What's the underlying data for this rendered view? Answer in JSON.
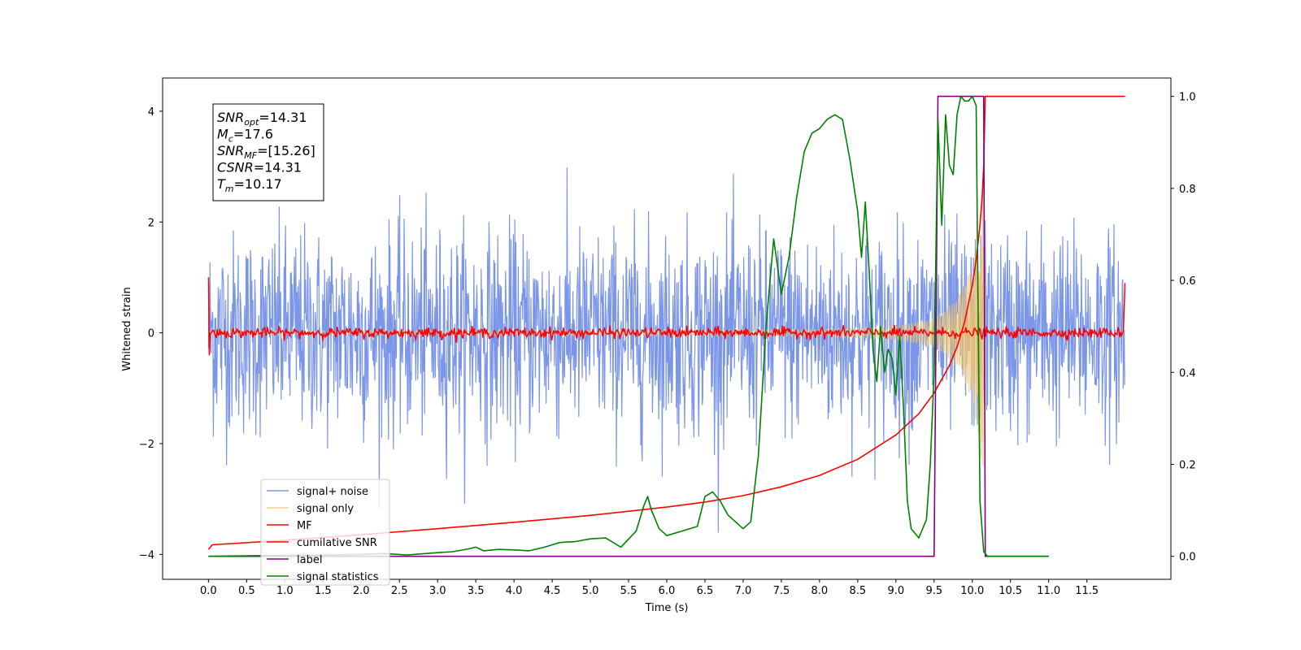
{
  "chart_data": {
    "type": "line",
    "title": "",
    "xlabel": "Time (s)",
    "ylabel": "Whitened strain",
    "xlim": [
      -0.6,
      12.6
    ],
    "ylim": [
      -4.45,
      4.6
    ],
    "y2lim": [
      -0.05,
      1.04
    ],
    "x_ticks": [
      0.0,
      0.5,
      1.0,
      1.5,
      2.0,
      2.5,
      3.0,
      3.5,
      4.0,
      4.5,
      5.0,
      5.5,
      6.0,
      6.5,
      7.0,
      7.5,
      8.0,
      8.5,
      9.0,
      9.5,
      10.0,
      10.5,
      11.0,
      11.5
    ],
    "x_tick_labels": [
      "0.0",
      "0.5",
      "1.0",
      "1.5",
      "2.0",
      "2.5",
      "3.0",
      "3.5",
      "4.0",
      "4.5",
      "5.0",
      "5.5",
      "6.0",
      "6.5",
      "7.0",
      "7.5",
      "8.0",
      "8.5",
      "9.0",
      "9.5",
      "10.0",
      "10.5",
      "11.0",
      "11.5"
    ],
    "y_ticks": [
      -4,
      -2,
      0,
      2,
      4
    ],
    "y_tick_labels": [
      "−4",
      "−2",
      "0",
      "2",
      "4"
    ],
    "y2_ticks": [
      0.0,
      0.2,
      0.4,
      0.6,
      0.8,
      1.0
    ],
    "y2_tick_labels": [
      "0.0",
      "0.2",
      "0.4",
      "0.6",
      "0.8",
      "1.0"
    ],
    "grid": false,
    "legend_position": "lower-left",
    "info_box": {
      "lines": [
        {
          "sym": "SNR",
          "sub": "opt",
          "val": "=14.31"
        },
        {
          "sym": "M",
          "sub": "c",
          "val": "=17.6"
        },
        {
          "sym": "SNR",
          "sub": "MF",
          "val": "=[15.26]"
        },
        {
          "sym": "CSNR",
          "sub": "",
          "val": "=14.31"
        },
        {
          "sym": "T",
          "sub": "m",
          "val": "=10.17"
        }
      ]
    },
    "series": [
      {
        "name": "signal+ noise",
        "axis": "left",
        "color": "#7b96e8",
        "style": "noise",
        "x_range": [
          0.0,
          12.0
        ],
        "amplitude_typical": 2.0,
        "peak_max": 3.3,
        "peak_min": -3.6
      },
      {
        "name": "signal only",
        "axis": "left",
        "color": "#f2c46a",
        "style": "chirp",
        "x_range": [
          0.0,
          10.17
        ],
        "envelope": [
          [
            0.0,
            0.03
          ],
          [
            8.0,
            0.06
          ],
          [
            9.0,
            0.12
          ],
          [
            9.5,
            0.25
          ],
          [
            9.8,
            0.6
          ],
          [
            10.0,
            1.2
          ],
          [
            10.1,
            2.0
          ],
          [
            10.15,
            3.0
          ],
          [
            10.17,
            3.2
          ]
        ]
      },
      {
        "name": "MF",
        "axis": "left",
        "color": "#ff0000",
        "style": "mf",
        "x_range": [
          0.0,
          12.0
        ],
        "baseline": 0.0,
        "noise_amplitude": 0.1,
        "edge_values": [
          [
            0.0,
            1.0
          ],
          [
            0.02,
            -0.4
          ],
          [
            12.0,
            0.9
          ]
        ]
      },
      {
        "name": "cumilative SNR",
        "axis": "right",
        "color": "#ff0000",
        "x": [
          0.0,
          0.05,
          1.0,
          2.0,
          3.0,
          4.0,
          5.0,
          6.0,
          6.5,
          7.0,
          7.5,
          8.0,
          8.5,
          9.0,
          9.3,
          9.5,
          9.7,
          9.8,
          9.9,
          10.0,
          10.05,
          10.1,
          10.13,
          10.15,
          10.17,
          10.18,
          12.0
        ],
        "y": [
          0.015,
          0.025,
          0.035,
          0.047,
          0.06,
          0.074,
          0.089,
          0.107,
          0.118,
          0.132,
          0.151,
          0.176,
          0.211,
          0.264,
          0.31,
          0.355,
          0.415,
          0.455,
          0.51,
          0.59,
          0.645,
          0.72,
          0.785,
          0.85,
          1.0,
          1.0,
          1.0
        ]
      },
      {
        "name": "label",
        "axis": "right",
        "color": "#800080",
        "x": [
          0.0,
          9.5,
          9.55,
          10.15,
          10.17,
          11.0
        ],
        "y": [
          0.0,
          0.0,
          1.0,
          1.0,
          0.0,
          0.0
        ]
      },
      {
        "name": "signal statistics",
        "axis": "right",
        "color": "#008000",
        "x": [
          0.0,
          0.5,
          1.0,
          1.5,
          2.0,
          2.3,
          2.6,
          3.0,
          3.2,
          3.4,
          3.5,
          3.6,
          3.8,
          4.0,
          4.2,
          4.4,
          4.6,
          4.8,
          5.0,
          5.2,
          5.4,
          5.6,
          5.7,
          5.75,
          5.8,
          5.9,
          6.0,
          6.2,
          6.4,
          6.5,
          6.6,
          6.7,
          6.8,
          6.9,
          7.0,
          7.1,
          7.2,
          7.3,
          7.4,
          7.5,
          7.6,
          7.7,
          7.8,
          7.9,
          8.0,
          8.1,
          8.2,
          8.3,
          8.4,
          8.5,
          8.55,
          8.6,
          8.65,
          8.7,
          8.75,
          8.8,
          8.85,
          8.9,
          8.95,
          9.0,
          9.05,
          9.1,
          9.15,
          9.2,
          9.3,
          9.4,
          9.45,
          9.5,
          9.55,
          9.6,
          9.65,
          9.7,
          9.75,
          9.8,
          9.85,
          9.9,
          9.95,
          10.0,
          10.05,
          10.1,
          10.15,
          10.2,
          10.25,
          11.0
        ],
        "y": [
          0.0,
          0.001,
          0.002,
          0.003,
          0.004,
          0.006,
          0.003,
          0.008,
          0.01,
          0.016,
          0.02,
          0.012,
          0.015,
          0.014,
          0.012,
          0.02,
          0.03,
          0.032,
          0.038,
          0.04,
          0.02,
          0.055,
          0.11,
          0.13,
          0.1,
          0.06,
          0.045,
          0.055,
          0.065,
          0.13,
          0.14,
          0.12,
          0.09,
          0.075,
          0.06,
          0.075,
          0.22,
          0.5,
          0.69,
          0.57,
          0.65,
          0.78,
          0.88,
          0.92,
          0.93,
          0.95,
          0.96,
          0.95,
          0.86,
          0.75,
          0.65,
          0.77,
          0.62,
          0.45,
          0.38,
          0.5,
          0.4,
          0.45,
          0.43,
          0.35,
          0.48,
          0.32,
          0.12,
          0.06,
          0.04,
          0.08,
          0.2,
          0.4,
          0.95,
          0.72,
          0.96,
          0.85,
          0.83,
          0.96,
          1.0,
          0.99,
          0.99,
          1.0,
          0.98,
          0.12,
          0.01,
          0.0,
          0.0,
          0.0
        ]
      }
    ]
  }
}
